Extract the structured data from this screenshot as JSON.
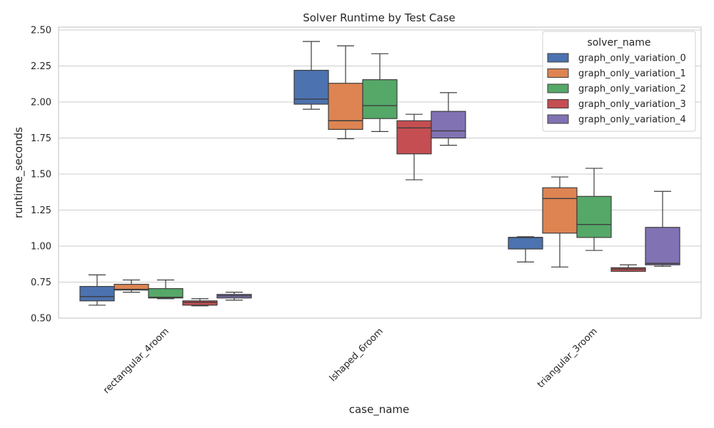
{
  "chart_data": {
    "type": "box",
    "title": "Solver Runtime by Test Case",
    "xlabel": "case_name",
    "ylabel": "runtime_seconds",
    "ylim": [
      0.5,
      2.52
    ],
    "yticks": [
      "0.50",
      "0.75",
      "1.00",
      "1.25",
      "1.50",
      "1.75",
      "2.00",
      "2.25",
      "2.50"
    ],
    "categories": [
      "rectangular_4room",
      "lshaped_6room",
      "triangular_3room"
    ],
    "grid": "horizontal",
    "legend": {
      "title": "solver_name",
      "placement": "top-right"
    },
    "series": [
      {
        "name": "graph_only_variation_0",
        "color": "#4c72b0",
        "boxes": [
          {
            "whisker_low": 0.59,
            "q1": 0.62,
            "median": 0.65,
            "q3": 0.72,
            "whisker_high": 0.8
          },
          {
            "whisker_low": 1.95,
            "q1": 1.985,
            "median": 2.02,
            "q3": 2.22,
            "whisker_high": 2.42
          },
          {
            "whisker_low": 0.89,
            "q1": 0.98,
            "median": 1.06,
            "q3": 1.06,
            "whisker_high": 1.065
          }
        ]
      },
      {
        "name": "graph_only_variation_1",
        "color": "#dd8452",
        "boxes": [
          {
            "whisker_low": 0.68,
            "q1": 0.695,
            "median": 0.7,
            "q3": 0.735,
            "whisker_high": 0.765
          },
          {
            "whisker_low": 1.745,
            "q1": 1.81,
            "median": 1.87,
            "q3": 2.13,
            "whisker_high": 2.39
          },
          {
            "whisker_low": 0.855,
            "q1": 1.09,
            "median": 1.33,
            "q3": 1.405,
            "whisker_high": 1.48
          }
        ]
      },
      {
        "name": "graph_only_variation_2",
        "color": "#55a868",
        "boxes": [
          {
            "whisker_low": 0.635,
            "q1": 0.64,
            "median": 0.645,
            "q3": 0.705,
            "whisker_high": 0.765
          },
          {
            "whisker_low": 1.795,
            "q1": 1.885,
            "median": 1.975,
            "q3": 2.155,
            "whisker_high": 2.335
          },
          {
            "whisker_low": 0.97,
            "q1": 1.06,
            "median": 1.15,
            "q3": 1.345,
            "whisker_high": 1.54
          }
        ]
      },
      {
        "name": "graph_only_variation_3",
        "color": "#c44e52",
        "boxes": [
          {
            "whisker_low": 0.585,
            "q1": 0.59,
            "median": 0.61,
            "q3": 0.62,
            "whisker_high": 0.635
          },
          {
            "whisker_low": 1.46,
            "q1": 1.64,
            "median": 1.82,
            "q3": 1.87,
            "whisker_high": 1.915
          },
          {
            "whisker_low": 0.825,
            "q1": 0.825,
            "median": 0.84,
            "q3": 0.85,
            "whisker_high": 0.87
          }
        ]
      },
      {
        "name": "graph_only_variation_4",
        "color": "#8172b3",
        "boxes": [
          {
            "whisker_low": 0.625,
            "q1": 0.64,
            "median": 0.655,
            "q3": 0.665,
            "whisker_high": 0.68
          },
          {
            "whisker_low": 1.7,
            "q1": 1.75,
            "median": 1.8,
            "q3": 1.935,
            "whisker_high": 2.065
          },
          {
            "whisker_low": 0.86,
            "q1": 0.87,
            "median": 0.88,
            "q3": 1.13,
            "whisker_high": 1.38
          }
        ]
      }
    ]
  }
}
